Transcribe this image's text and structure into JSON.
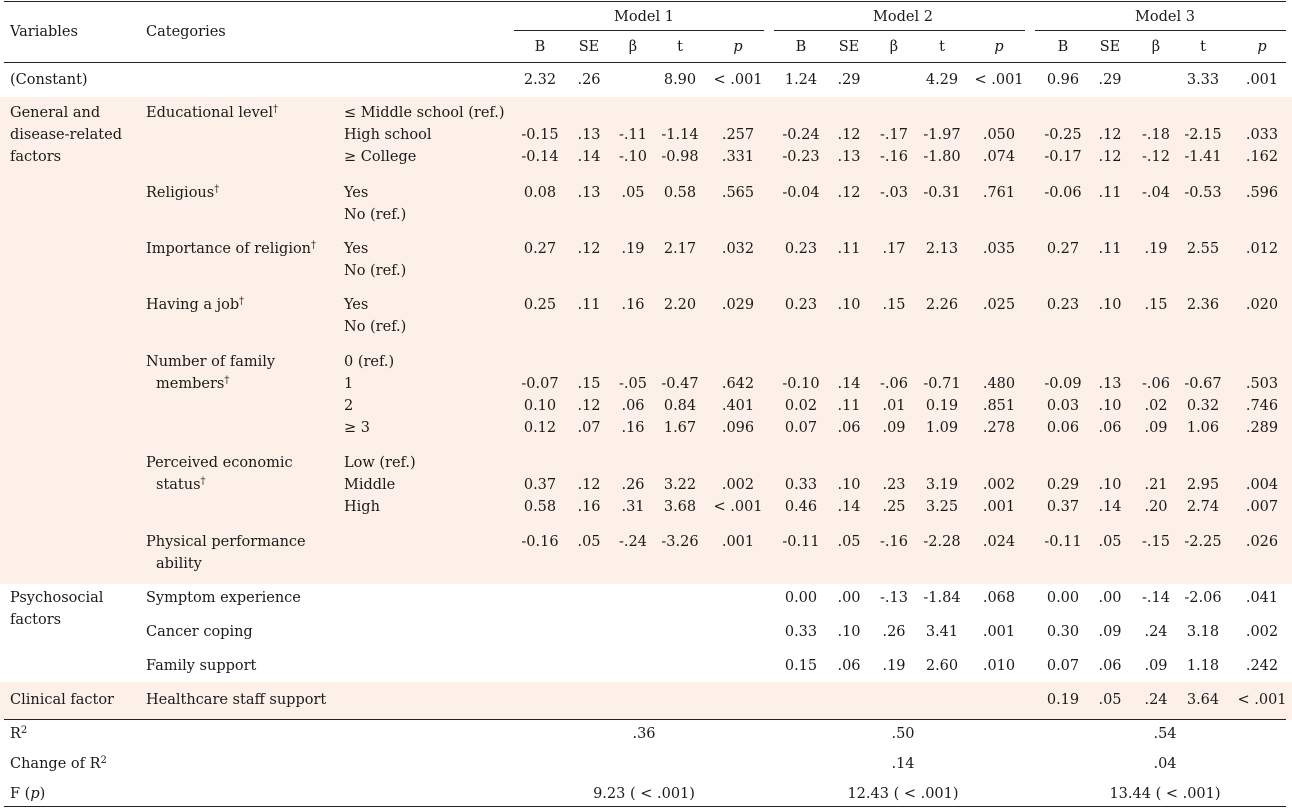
{
  "table": {
    "header": {
      "variables": "Variables",
      "categories": "Categories",
      "models": [
        "Model 1",
        "Model 2",
        "Model 3"
      ],
      "stats": [
        "B",
        "SE",
        "β",
        "t",
        "p"
      ]
    },
    "colors": {
      "shade": "#fcf0e8",
      "rule": "#222222",
      "text": "#1a1a1a"
    },
    "sup": "†",
    "groups": [
      {
        "name": "(Constant)",
        "rows": [
          {
            "cat": "",
            "sub": [
              {
                "label": "",
                "vals": [
                  "2.32",
                  ".26",
                  "",
                  "8.90",
                  "< .001",
                  "1.24",
                  ".29",
                  "",
                  "4.29",
                  "< .001",
                  "0.96",
                  ".29",
                  "",
                  "3.33",
                  ".001"
                ]
              }
            ]
          }
        ]
      },
      {
        "name": "General and disease-related factors",
        "lines": [
          "General and",
          "disease-related",
          "factors"
        ],
        "rows": [
          {
            "cat": "Educational level",
            "sup": true,
            "sub": [
              {
                "label": "≤ Middle school (ref.)",
                "vals": []
              },
              {
                "label": "High school",
                "vals": [
                  "-0.15",
                  ".13",
                  "-.11",
                  "-1.14",
                  ".257",
                  "-0.24",
                  ".12",
                  "-.17",
                  "-1.97",
                  ".050",
                  "-0.25",
                  ".12",
                  "-.18",
                  "-2.15",
                  ".033"
                ]
              },
              {
                "label": "≥ College",
                "vals": [
                  "-0.14",
                  ".14",
                  "-.10",
                  "-0.98",
                  ".331",
                  "-0.23",
                  ".13",
                  "-.16",
                  "-1.80",
                  ".074",
                  "-0.17",
                  ".12",
                  "-.12",
                  "-1.41",
                  ".162"
                ]
              }
            ]
          },
          {
            "cat": "Religious",
            "sup": true,
            "sub": [
              {
                "label": "Yes",
                "vals": [
                  "0.08",
                  ".13",
                  ".05",
                  "0.58",
                  ".565",
                  "-0.04",
                  ".12",
                  "-.03",
                  "-0.31",
                  ".761",
                  "-0.06",
                  ".11",
                  "-.04",
                  "-0.53",
                  ".596"
                ]
              },
              {
                "label": "No (ref.)",
                "vals": []
              }
            ]
          },
          {
            "cat": "Importance of religion",
            "sup": true,
            "sub": [
              {
                "label": "Yes",
                "vals": [
                  "0.27",
                  ".12",
                  ".19",
                  "2.17",
                  ".032",
                  "0.23",
                  ".11",
                  ".17",
                  "2.13",
                  ".035",
                  "0.27",
                  ".11",
                  ".19",
                  "2.55",
                  ".012"
                ]
              },
              {
                "label": "No (ref.)",
                "vals": []
              }
            ]
          },
          {
            "cat": "Having a job",
            "sup": true,
            "sub": [
              {
                "label": "Yes",
                "vals": [
                  "0.25",
                  ".11",
                  ".16",
                  "2.20",
                  ".029",
                  "0.23",
                  ".10",
                  ".15",
                  "2.26",
                  ".025",
                  "0.23",
                  ".10",
                  ".15",
                  "2.36",
                  ".020"
                ]
              },
              {
                "label": "No (ref.)",
                "vals": []
              }
            ]
          },
          {
            "cat": "Number of family members",
            "lines": [
              "Number of family",
              "members"
            ],
            "sup": true,
            "sub": [
              {
                "label": "0 (ref.)",
                "vals": []
              },
              {
                "label": "1",
                "vals": [
                  "-0.07",
                  ".15",
                  "-.05",
                  "-0.47",
                  ".642",
                  "-0.10",
                  ".14",
                  "-.06",
                  "-0.71",
                  ".480",
                  "-0.09",
                  ".13",
                  "-.06",
                  "-0.67",
                  ".503"
                ]
              },
              {
                "label": "2",
                "vals": [
                  "0.10",
                  ".12",
                  ".06",
                  "0.84",
                  ".401",
                  "0.02",
                  ".11",
                  ".01",
                  "0.19",
                  ".851",
                  "0.03",
                  ".10",
                  ".02",
                  "0.32",
                  ".746"
                ]
              },
              {
                "label": "≥ 3",
                "vals": [
                  "0.12",
                  ".07",
                  ".16",
                  "1.67",
                  ".096",
                  "0.07",
                  ".06",
                  ".09",
                  "1.09",
                  ".278",
                  "0.06",
                  ".06",
                  ".09",
                  "1.06",
                  ".289"
                ]
              }
            ]
          },
          {
            "cat": "Perceived economic status",
            "lines": [
              "Perceived economic",
              "status"
            ],
            "sup": true,
            "sub": [
              {
                "label": "Low (ref.)",
                "vals": []
              },
              {
                "label": "Middle",
                "vals": [
                  "0.37",
                  ".12",
                  ".26",
                  "3.22",
                  ".002",
                  "0.33",
                  ".10",
                  ".23",
                  "3.19",
                  ".002",
                  "0.29",
                  ".10",
                  ".21",
                  "2.95",
                  ".004"
                ]
              },
              {
                "label": "High",
                "vals": [
                  "0.58",
                  ".16",
                  ".31",
                  "3.68",
                  "< .001",
                  "0.46",
                  ".14",
                  ".25",
                  "3.25",
                  ".001",
                  "0.37",
                  ".14",
                  ".20",
                  "2.74",
                  ".007"
                ]
              }
            ]
          },
          {
            "cat": "Physical performance ability",
            "lines": [
              "Physical performance",
              "ability"
            ],
            "sup": false,
            "sub": [
              {
                "label": "",
                "vals": [
                  "-0.16",
                  ".05",
                  "-.24",
                  "-3.26",
                  ".001",
                  "-0.11",
                  ".05",
                  "-.16",
                  "-2.28",
                  ".024",
                  "-0.11",
                  ".05",
                  "-.15",
                  "-2.25",
                  ".026"
                ]
              }
            ]
          }
        ]
      },
      {
        "name": "Psychosocial factors",
        "lines": [
          "Psychosocial",
          "factors"
        ],
        "rows": [
          {
            "cat": "Symptom experience",
            "sub": [
              {
                "label": "",
                "vals": [
                  "",
                  "",
                  "",
                  "",
                  "",
                  "0.00",
                  ".00",
                  "-.13",
                  "-1.84",
                  ".068",
                  "0.00",
                  ".00",
                  "-.14",
                  "-2.06",
                  ".041"
                ]
              }
            ]
          },
          {
            "cat": "Cancer coping",
            "sub": [
              {
                "label": "",
                "vals": [
                  "",
                  "",
                  "",
                  "",
                  "",
                  "0.33",
                  ".10",
                  ".26",
                  "3.41",
                  ".001",
                  "0.30",
                  ".09",
                  ".24",
                  "3.18",
                  ".002"
                ]
              }
            ]
          },
          {
            "cat": "Family support",
            "sub": [
              {
                "label": "",
                "vals": [
                  "",
                  "",
                  "",
                  "",
                  "",
                  "0.15",
                  ".06",
                  ".19",
                  "2.60",
                  ".010",
                  "0.07",
                  ".06",
                  ".09",
                  "1.18",
                  ".242"
                ]
              }
            ]
          }
        ]
      },
      {
        "name": "Clinical factor",
        "rows": [
          {
            "cat": "Healthcare staff support",
            "sub": [
              {
                "label": "",
                "vals": [
                  "",
                  "",
                  "",
                  "",
                  "",
                  "",
                  "",
                  "",
                  "",
                  "",
                  "0.19",
                  ".05",
                  ".24",
                  "3.64",
                  "< .001"
                ]
              }
            ]
          }
        ]
      }
    ],
    "summary": [
      {
        "label": "R",
        "sup": "2",
        "vals": [
          ".36",
          ".50",
          ".54"
        ]
      },
      {
        "label": "Change of R",
        "sup": "2",
        "vals": [
          "",
          ".14",
          ".04"
        ]
      },
      {
        "label": "F (p)",
        "vals": [
          "9.23 ( < .001)",
          "12.43 ( < .001)",
          "13.44 ( < .001)"
        ]
      }
    ]
  }
}
